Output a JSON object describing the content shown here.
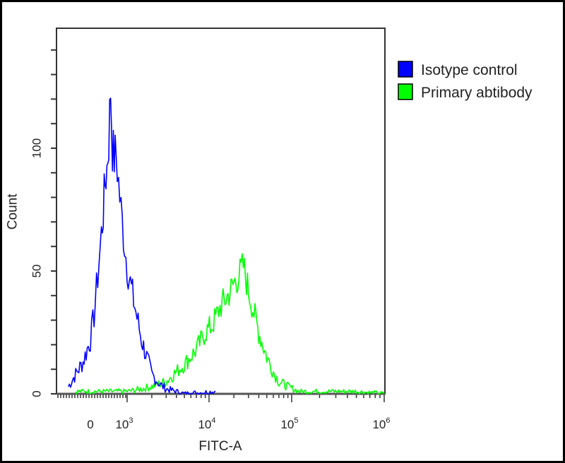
{
  "chart_data": {
    "type": "line",
    "title": "",
    "xlabel": "FITC-A",
    "ylabel": "Count",
    "x_scale": "biexponential (log)",
    "x_tick_labels": [
      "0",
      "10^3",
      "10^4",
      "10^5",
      "10^6"
    ],
    "y_tick_labels": [
      "0",
      "50",
      "100"
    ],
    "ylim": [
      0,
      150
    ],
    "grid": false,
    "legend_position": "right-outside-top",
    "series": [
      {
        "name": "Isotype control",
        "color": "#0000ff",
        "peak_x": "~5x10^2",
        "peak_count": 124,
        "points": [
          [
            -600,
            3
          ],
          [
            -400,
            8
          ],
          [
            -200,
            13
          ],
          [
            0,
            22
          ],
          [
            100,
            32
          ],
          [
            200,
            48
          ],
          [
            300,
            65
          ],
          [
            350,
            74
          ],
          [
            400,
            86
          ],
          [
            450,
            92
          ],
          [
            500,
            103
          ],
          [
            550,
            124
          ],
          [
            600,
            100
          ],
          [
            650,
            96
          ],
          [
            700,
            98
          ],
          [
            800,
            80
          ],
          [
            900,
            65
          ],
          [
            1000,
            52
          ],
          [
            1200,
            38
          ],
          [
            1500,
            22
          ],
          [
            2000,
            8
          ],
          [
            2500,
            4
          ],
          [
            3000,
            2
          ],
          [
            4000,
            1
          ],
          [
            5000,
            0
          ],
          [
            12000,
            1
          ]
        ]
      },
      {
        "name": "Primary abtibody",
        "color": "#00ff00",
        "peak_x": "~2.5x10^4",
        "peak_count": 52,
        "points": [
          [
            -400,
            1
          ],
          [
            0,
            1
          ],
          [
            500,
            1
          ],
          [
            1000,
            1
          ],
          [
            1500,
            2
          ],
          [
            2000,
            3
          ],
          [
            3000,
            5
          ],
          [
            4000,
            9
          ],
          [
            5000,
            12
          ],
          [
            7000,
            18
          ],
          [
            9000,
            25
          ],
          [
            11000,
            28
          ],
          [
            14000,
            36
          ],
          [
            17000,
            40
          ],
          [
            20000,
            45
          ],
          [
            23000,
            48
          ],
          [
            26000,
            52
          ],
          [
            30000,
            42
          ],
          [
            35000,
            33
          ],
          [
            40000,
            25
          ],
          [
            50000,
            15
          ],
          [
            60000,
            9
          ],
          [
            70000,
            5
          ],
          [
            90000,
            3
          ],
          [
            120000,
            1
          ],
          [
            200000,
            1
          ],
          [
            500000,
            1
          ],
          [
            1000000,
            0
          ]
        ]
      }
    ]
  },
  "legend": {
    "items": [
      {
        "label": "Isotype control",
        "color": "#0000ff"
      },
      {
        "label": "Primary abtibody",
        "color": "#00ff00"
      }
    ]
  },
  "axes": {
    "xlabel": "FITC-A",
    "ylabel": "Count",
    "x_ticks": [
      {
        "label": "0",
        "sup": ""
      },
      {
        "label": "10",
        "sup": "3"
      },
      {
        "label": "10",
        "sup": "4"
      },
      {
        "label": "10",
        "sup": "5"
      },
      {
        "label": "10",
        "sup": "6"
      }
    ],
    "y_ticks": [
      "0",
      "50",
      "100"
    ]
  }
}
